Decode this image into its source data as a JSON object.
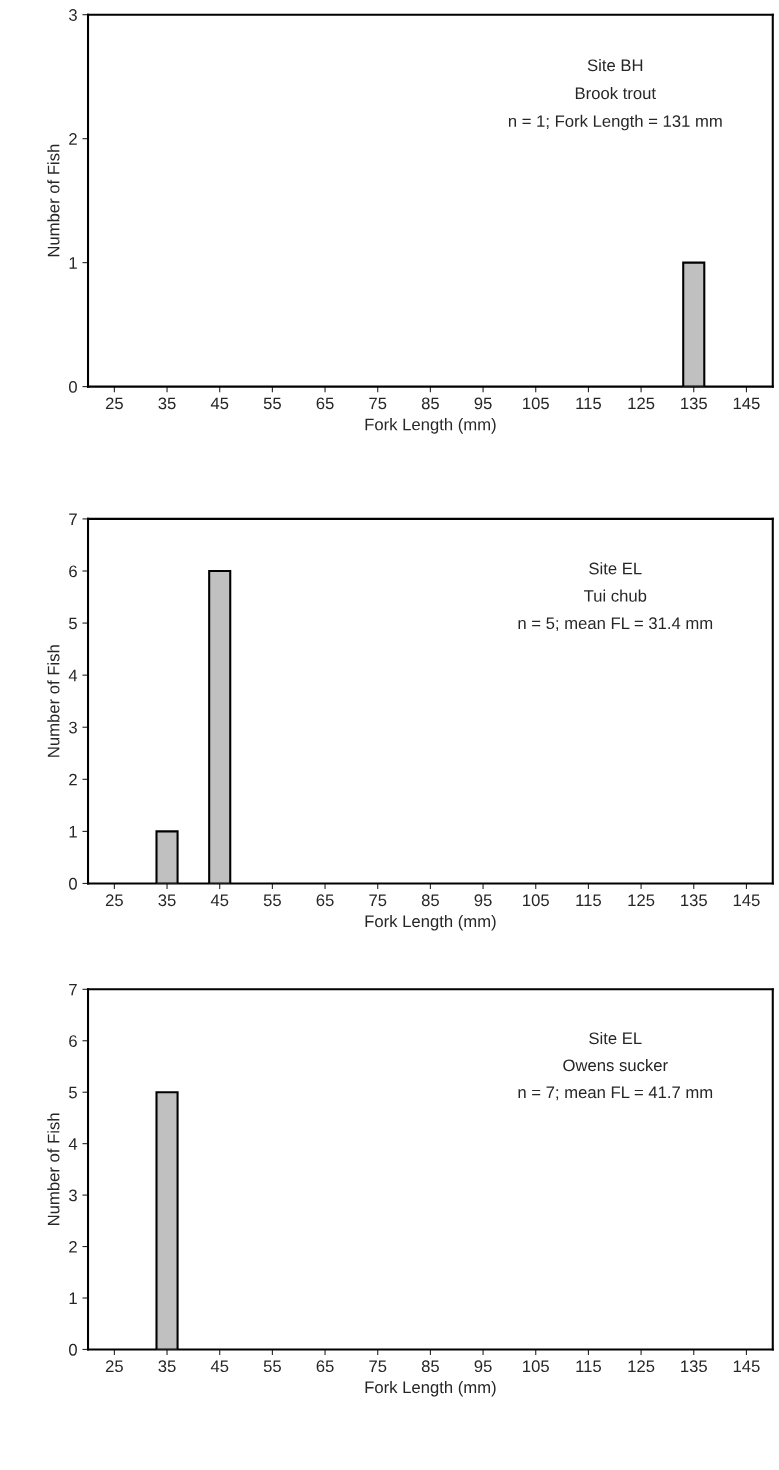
{
  "chart_data": [
    {
      "type": "bar",
      "xlabel": "Fork Length (mm)",
      "ylabel": "Number of Fish",
      "categories": [
        "25",
        "35",
        "45",
        "55",
        "65",
        "75",
        "85",
        "95",
        "105",
        "115",
        "125",
        "135",
        "145"
      ],
      "values": [
        0,
        0,
        0,
        0,
        0,
        0,
        0,
        0,
        0,
        0,
        0,
        1,
        0
      ],
      "color": "#c0c0c0",
      "ylim": [
        0,
        3
      ],
      "yticks": [
        0,
        1,
        2,
        3
      ],
      "grid": false,
      "legend": false,
      "annotations": [
        "Site BH",
        "Brook trout",
        "n = 1; Fork Length = 131 mm"
      ]
    },
    {
      "type": "bar",
      "xlabel": "Fork Length (mm)",
      "ylabel": "Number of Fish",
      "categories": [
        "25",
        "35",
        "45",
        "55",
        "65",
        "75",
        "85",
        "95",
        "105",
        "115",
        "125",
        "135",
        "145"
      ],
      "values": [
        0,
        1,
        6,
        0,
        0,
        0,
        0,
        0,
        0,
        0,
        0,
        0,
        0
      ],
      "color": "#c0c0c0",
      "ylim": [
        0,
        7
      ],
      "yticks": [
        0,
        1,
        2,
        3,
        4,
        5,
        6,
        7
      ],
      "grid": false,
      "legend": false,
      "annotations": [
        "Site EL",
        "Tui chub",
        "n = 5; mean FL = 31.4 mm"
      ]
    },
    {
      "type": "bar",
      "xlabel": "Fork Length (mm)",
      "ylabel": "Number of Fish",
      "categories": [
        "25",
        "35",
        "45",
        "55",
        "65",
        "75",
        "85",
        "95",
        "105",
        "115",
        "125",
        "135",
        "145"
      ],
      "values": [
        0,
        5,
        0,
        0,
        0,
        0,
        0,
        0,
        0,
        0,
        0,
        0,
        0
      ],
      "color": "#c0c0c0",
      "ylim": [
        0,
        7
      ],
      "yticks": [
        0,
        1,
        2,
        3,
        4,
        5,
        6,
        7
      ],
      "grid": false,
      "legend": false,
      "annotations": [
        "Site EL",
        "Owens sucker",
        "n = 7; mean FL = 41.7 mm"
      ]
    }
  ]
}
